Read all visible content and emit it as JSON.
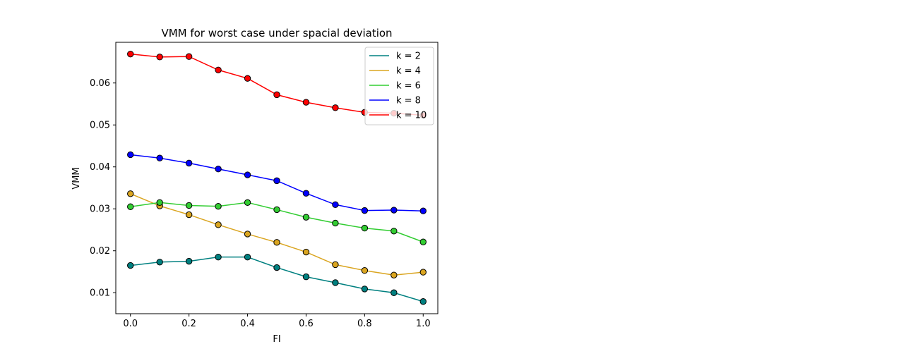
{
  "chart_data": {
    "type": "line",
    "title": "VMM for worst case under spacial deviation",
    "xlabel": "FI",
    "ylabel": "VMM",
    "xlim": [
      -0.05,
      1.05
    ],
    "ylim": [
      0.005,
      0.0697
    ],
    "x": [
      0.0,
      0.1,
      0.2,
      0.3,
      0.4,
      0.5,
      0.6,
      0.7,
      0.8,
      0.9,
      1.0
    ],
    "xticks": [
      0.0,
      0.2,
      0.4,
      0.6,
      0.8,
      1.0
    ],
    "xtick_labels": [
      "0.0",
      "0.2",
      "0.4",
      "0.6",
      "0.8",
      "1.0"
    ],
    "yticks": [
      0.01,
      0.02,
      0.03,
      0.04,
      0.05,
      0.06
    ],
    "ytick_labels": [
      "0.01",
      "0.02",
      "0.03",
      "0.04",
      "0.05",
      "0.06"
    ],
    "grid": false,
    "legend_position": "top-right",
    "series": [
      {
        "name": "k = 2",
        "color": "#008080",
        "values": [
          0.0165,
          0.0173,
          0.0175,
          0.0185,
          0.0185,
          0.016,
          0.0138,
          0.0124,
          0.0109,
          0.01,
          0.0079
        ]
      },
      {
        "name": "k = 4",
        "color": "#daa520",
        "values": [
          0.0336,
          0.0307,
          0.0286,
          0.0262,
          0.024,
          0.022,
          0.0197,
          0.0167,
          0.0153,
          0.0142,
          0.0149
        ]
      },
      {
        "name": "k = 6",
        "color": "#32cd32",
        "values": [
          0.0305,
          0.0315,
          0.0308,
          0.0306,
          0.0315,
          0.0298,
          0.028,
          0.0266,
          0.0254,
          0.0247,
          0.0221
        ]
      },
      {
        "name": "k = 8",
        "color": "#0000ff",
        "values": [
          0.0429,
          0.0421,
          0.0409,
          0.0395,
          0.0381,
          0.0367,
          0.0337,
          0.031,
          0.0296,
          0.0297,
          0.0295
        ]
      },
      {
        "name": "k = 10",
        "color": "#ff0000",
        "values": [
          0.0669,
          0.0662,
          0.0663,
          0.0631,
          0.0611,
          0.0572,
          0.0554,
          0.0541,
          0.053,
          0.0528,
          0.0523
        ]
      }
    ]
  }
}
